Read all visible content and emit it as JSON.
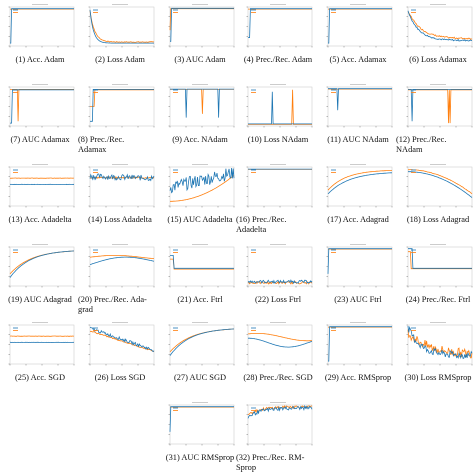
{
  "colors": {
    "blue": "#1f77b4",
    "orange": "#ff7f0e",
    "axis": "#555555",
    "frame": "#cfcfcf"
  },
  "chart_data": [
    {
      "id": "p1",
      "type": "line",
      "caption": "(1) Acc. Adam",
      "title": "",
      "pattern": "acc_flat_jump",
      "legend": true
    },
    {
      "id": "p2",
      "type": "line",
      "caption": "(2) Loss Adam",
      "title": "",
      "pattern": "loss_decay",
      "legend": true
    },
    {
      "id": "p3",
      "type": "line",
      "caption": "(3) AUC Adam",
      "title": "",
      "pattern": "auc_jump",
      "legend": true
    },
    {
      "id": "p4",
      "type": "line",
      "caption": "(4) Prec./Rec. Adam",
      "title": "",
      "pattern": "prec_jump",
      "legend": true
    },
    {
      "id": "p5",
      "type": "line",
      "caption": "(5) Acc. Adamax",
      "title": "",
      "pattern": "acc_flat_jump",
      "legend": true
    },
    {
      "id": "p6",
      "type": "line",
      "caption": "(6) Loss Adamax",
      "title": "",
      "pattern": "loss_decay_noisy",
      "legend": true
    },
    {
      "id": "p7",
      "type": "line",
      "caption": "(7) AUC Adamax",
      "title": "",
      "pattern": "auc_spike_low",
      "legend": true
    },
    {
      "id": "p8",
      "type": "line",
      "caption": "(8) Prec./Rec. Adamax",
      "title": "",
      "pattern": "prec_early",
      "legend": true
    },
    {
      "id": "p9",
      "type": "line",
      "caption": "(9) Acc. NAdam",
      "title": "",
      "pattern": "acc_dips",
      "legend": true
    },
    {
      "id": "p10",
      "type": "line",
      "caption": "(10) Loss NAdam",
      "title": "",
      "pattern": "loss_spikes",
      "legend": true
    },
    {
      "id": "p11",
      "type": "line",
      "caption": "(11) AUC NAdam",
      "title": "",
      "pattern": "auc_dip",
      "legend": true
    },
    {
      "id": "p12",
      "type": "line",
      "caption": "(12) Prec./Rec. NAdam",
      "title": "",
      "pattern": "prec_dips",
      "legend": true
    },
    {
      "id": "p13",
      "type": "line",
      "caption": "(13) Acc. Adadelta",
      "title": "",
      "pattern": "acc_two_flat",
      "legend": true
    },
    {
      "id": "p14",
      "type": "line",
      "caption": "(14) Loss Adadelta",
      "title": "",
      "pattern": "loss_noisy_flat",
      "legend": true
    },
    {
      "id": "p15",
      "type": "line",
      "caption": "(15) AUC Adadelta",
      "title": "",
      "pattern": "auc_noisy_rise",
      "legend": true
    },
    {
      "id": "p16",
      "type": "line",
      "caption": "(16) Prec./Rec. Adadelta",
      "title": "",
      "pattern": "prec_flat_top",
      "legend": true
    },
    {
      "id": "p17",
      "type": "line",
      "caption": "(17) Acc. Adagrad",
      "title": "",
      "pattern": "acc_rise",
      "legend": true
    },
    {
      "id": "p18",
      "type": "line",
      "caption": "(18) Loss Adagrad",
      "title": "",
      "pattern": "loss_curve_down",
      "legend": true
    },
    {
      "id": "p19",
      "type": "line",
      "caption": "(19) AUC Adagrad",
      "title": "",
      "pattern": "auc_rise",
      "legend": true
    },
    {
      "id": "p20",
      "type": "line",
      "caption": "(20) Prec./Rec. Adagrad",
      "title": "",
      "pattern": "prec_hump",
      "legend": true
    },
    {
      "id": "p21",
      "type": "line",
      "caption": "(21) Acc. Ftrl",
      "title": "",
      "pattern": "acc_step",
      "legend": true
    },
    {
      "id": "p22",
      "type": "line",
      "caption": "(22) Loss Ftrl",
      "title": "",
      "pattern": "loss_low_noise",
      "legend": true
    },
    {
      "id": "p23",
      "type": "line",
      "caption": "(23) AUC Ftrl",
      "title": "",
      "pattern": "auc_flat_top",
      "legend": true
    },
    {
      "id": "p24",
      "type": "line",
      "caption": "(24) Prec./Rec. Ftrl",
      "title": "",
      "pattern": "prec_step",
      "legend": true
    },
    {
      "id": "p25",
      "type": "line",
      "caption": "(25) Acc. SGD",
      "title": "",
      "pattern": "acc_two_flat",
      "legend": true
    },
    {
      "id": "p26",
      "type": "line",
      "caption": "(26) Loss SGD",
      "title": "",
      "pattern": "loss_linear_noisy",
      "legend": true
    },
    {
      "id": "p27",
      "type": "line",
      "caption": "(27) AUC SGD",
      "title": "",
      "pattern": "auc_rise",
      "legend": true
    },
    {
      "id": "p28",
      "type": "line",
      "caption": "(28) Prec./Rec. SGD",
      "title": "",
      "pattern": "prec_wave",
      "legend": true
    },
    {
      "id": "p29",
      "type": "line",
      "caption": "(29) Acc. RMSprop",
      "title": "",
      "pattern": "acc_flat_jump",
      "legend": true
    },
    {
      "id": "p30",
      "type": "line",
      "caption": "(30) Loss RMSprop",
      "title": "",
      "pattern": "loss_dense_noisy",
      "legend": true
    },
    {
      "id": "p31",
      "type": "line",
      "caption": "(31) AUC RMSprop",
      "title": "",
      "pattern": "auc_flat_top",
      "legend": true
    },
    {
      "id": "p32",
      "type": "line",
      "caption": "(32) Prec./Rec. RMSprop",
      "title": "",
      "pattern": "prec_dense_noisy",
      "legend": true
    }
  ],
  "captions_display": {
    "p8": "(8)          Prec./Rec.\nAdamax",
    "p12": "(12)    Prec./Rec.\nNAdam",
    "p16": "(16)        Prec./Rec.\nAdadelta",
    "p20": "(20) Prec./Rec. Ada-\ngrad",
    "p32": "(32) Prec./Rec. RM-\nSprop"
  }
}
